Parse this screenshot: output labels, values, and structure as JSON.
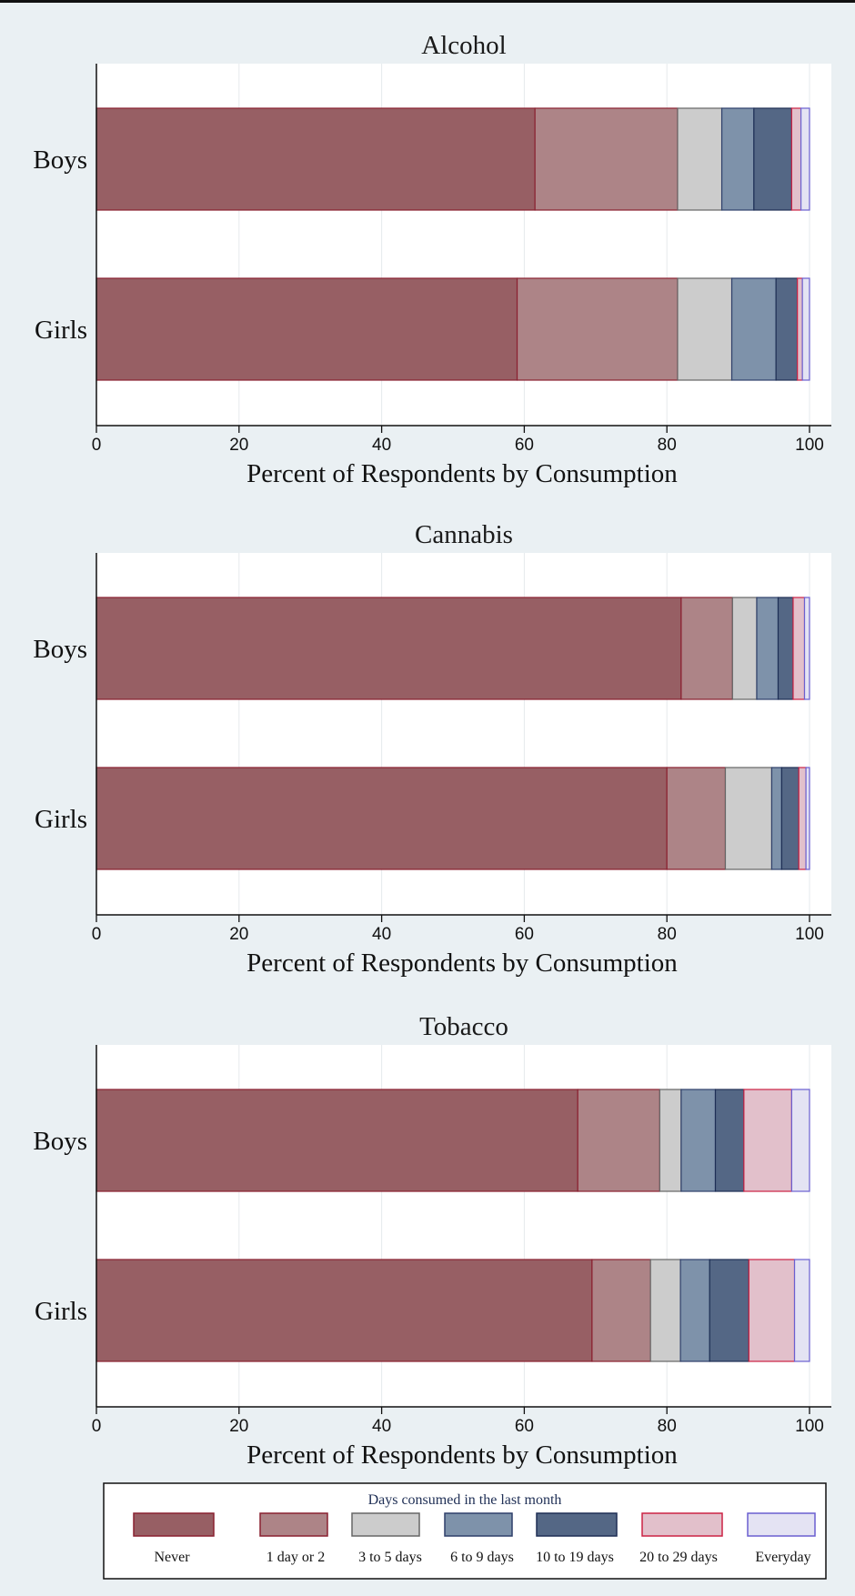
{
  "legend": {
    "title": "Days consumed in the last month",
    "entries": [
      {
        "label": "Never",
        "fill": "#975f64",
        "stroke": "#8a2030"
      },
      {
        "label": "1 day or 2",
        "fill": "#ad8487",
        "stroke": "#8a2030"
      },
      {
        "label": "3 to 5 days",
        "fill": "#cccccc",
        "stroke": "#666666"
      },
      {
        "label": "6 to 9 days",
        "fill": "#7e92aa",
        "stroke": "#2e3f6a"
      },
      {
        "label": "10 to 19 days",
        "fill": "#546785",
        "stroke": "#1e2f55"
      },
      {
        "label": "20 to 29 days",
        "fill": "#e2c0cb",
        "stroke": "#cc2244"
      },
      {
        "label": "Everyday",
        "fill": "#e4e3f3",
        "stroke": "#6a5fd0"
      }
    ]
  },
  "chart_data": [
    {
      "type": "bar",
      "orientation": "horizontal",
      "stacked": true,
      "title": "Alcohol",
      "xlabel": "Percent of Respondents by Consumption",
      "xlim": [
        0,
        100
      ],
      "xticks": [
        0,
        20,
        40,
        60,
        80,
        100
      ],
      "categories": [
        "Boys",
        "Girls"
      ],
      "series": [
        {
          "name": "Never",
          "values": [
            61.5,
            59
          ]
        },
        {
          "name": "1 day or 2",
          "values": [
            20,
            22.5
          ]
        },
        {
          "name": "3 to 5 days",
          "values": [
            6.2,
            7.6
          ]
        },
        {
          "name": "6 to 9 days",
          "values": [
            4.5,
            6.2
          ]
        },
        {
          "name": "10 to 19 days",
          "values": [
            5.3,
            3
          ]
        },
        {
          "name": "20 to 29 days",
          "values": [
            1.3,
            0.7
          ]
        },
        {
          "name": "Everyday",
          "values": [
            1.2,
            1
          ]
        }
      ]
    },
    {
      "type": "bar",
      "orientation": "horizontal",
      "stacked": true,
      "title": "Cannabis",
      "xlabel": "Percent of Respondents by Consumption",
      "xlim": [
        0,
        100
      ],
      "xticks": [
        0,
        20,
        40,
        60,
        80,
        100
      ],
      "categories": [
        "Boys",
        "Girls"
      ],
      "series": [
        {
          "name": "Never",
          "values": [
            82,
            80
          ]
        },
        {
          "name": "1 day or 2",
          "values": [
            7.2,
            8.2
          ]
        },
        {
          "name": "3 to 5 days",
          "values": [
            3.4,
            6.5
          ]
        },
        {
          "name": "6 to 9 days",
          "values": [
            3,
            1.4
          ]
        },
        {
          "name": "10 to 19 days",
          "values": [
            2.1,
            2.4
          ]
        },
        {
          "name": "20 to 29 days",
          "values": [
            1.6,
            1
          ]
        },
        {
          "name": "Everyday",
          "values": [
            0.7,
            0.5
          ]
        }
      ]
    },
    {
      "type": "bar",
      "orientation": "horizontal",
      "stacked": true,
      "title": "Tobacco",
      "xlabel": "Percent of Respondents by Consumption",
      "xlim": [
        0,
        100
      ],
      "xticks": [
        0,
        20,
        40,
        60,
        80,
        100
      ],
      "categories": [
        "Boys",
        "Girls"
      ],
      "series": [
        {
          "name": "Never",
          "values": [
            67.5,
            69.5
          ]
        },
        {
          "name": "1 day or 2",
          "values": [
            11.5,
            8.2
          ]
        },
        {
          "name": "3 to 5 days",
          "values": [
            3,
            4.2
          ]
        },
        {
          "name": "6 to 9 days",
          "values": [
            4.8,
            4.1
          ]
        },
        {
          "name": "10 to 19 days",
          "values": [
            4,
            5.5
          ]
        },
        {
          "name": "20 to 29 days",
          "values": [
            6.7,
            6.4
          ]
        },
        {
          "name": "Everyday",
          "values": [
            2.5,
            2.1
          ]
        }
      ]
    }
  ]
}
